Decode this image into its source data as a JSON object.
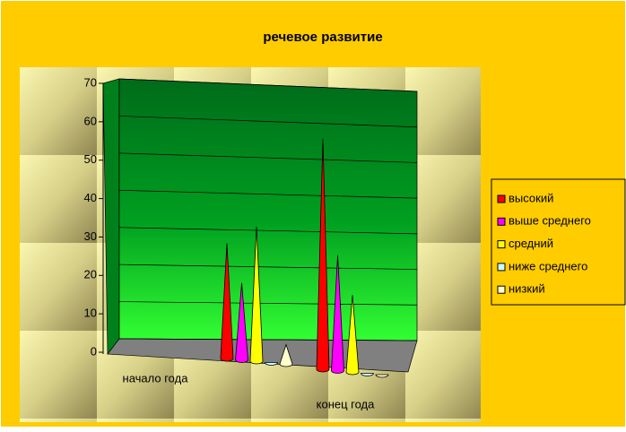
{
  "chart_data": {
    "type": "cone3d",
    "title": "речевое развитие",
    "categories": [
      "начало года",
      "конец года"
    ],
    "series": [
      {
        "name": "высокий",
        "color": "#ff0000",
        "values": [
          30,
          60
        ]
      },
      {
        "name": "выше среднего",
        "color": "#ff00ff",
        "values": [
          20,
          30
        ]
      },
      {
        "name": "средний",
        "color": "#ffff00",
        "values": [
          35,
          20
        ]
      },
      {
        "name": "ниже среднего",
        "color": "#ccffff",
        "values": [
          0,
          0
        ]
      },
      {
        "name": "низкий",
        "color": "#ffffcc",
        "values": [
          5,
          0
        ]
      }
    ],
    "ylim": [
      0,
      70
    ],
    "yticks": [
      0,
      10,
      20,
      30,
      40,
      50,
      60,
      70
    ],
    "grid": true,
    "legend": "right"
  }
}
